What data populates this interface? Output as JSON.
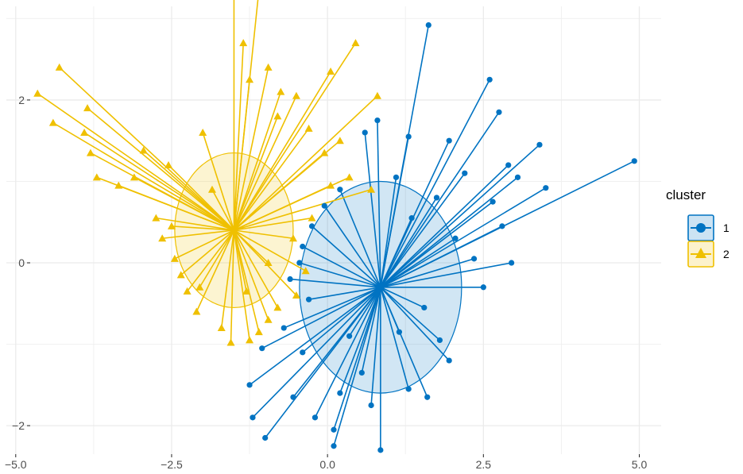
{
  "chart_data": {
    "type": "scatter",
    "subtype": "cluster-star-plot",
    "title": "",
    "xlabel": "",
    "ylabel": "",
    "xlim": [
      -5.15,
      5.35
    ],
    "ylim": [
      -2.35,
      3.15
    ],
    "x_ticks": [
      -5.0,
      -2.5,
      0.0,
      2.5,
      5.0
    ],
    "x_tick_labels": [
      "-5.0",
      "-2.5",
      "0.0",
      "2.5",
      "5.0"
    ],
    "y_ticks": [
      -2,
      0,
      2
    ],
    "y_tick_labels": [
      "-2",
      "0",
      "2"
    ],
    "grid": true,
    "legend": {
      "title": "cluster",
      "position": "right",
      "entries": [
        {
          "label": "1",
          "color": "#0073C2",
          "shape": "circle"
        },
        {
          "label": "2",
          "color": "#EFC000",
          "shape": "triangle"
        }
      ]
    },
    "series": [
      {
        "name": "1",
        "color": "#0073C2",
        "shape": "circle",
        "center": [
          0.85,
          -0.3
        ],
        "ellipse_radius": 1.3,
        "points": [
          [
            1.62,
            2.92
          ],
          [
            2.6,
            2.25
          ],
          [
            4.92,
            1.25
          ],
          [
            3.4,
            1.45
          ],
          [
            2.75,
            1.85
          ],
          [
            2.9,
            1.2
          ],
          [
            3.5,
            0.92
          ],
          [
            2.8,
            0.45
          ],
          [
            2.95,
            0.0
          ],
          [
            2.5,
            -0.3
          ],
          [
            1.95,
            -1.2
          ],
          [
            1.8,
            -0.95
          ],
          [
            2.05,
            0.3
          ],
          [
            0.6,
            1.6
          ],
          [
            0.8,
            1.75
          ],
          [
            1.3,
            1.55
          ],
          [
            1.95,
            1.5
          ],
          [
            2.2,
            1.1
          ],
          [
            1.75,
            0.8
          ],
          [
            1.1,
            1.05
          ],
          [
            0.2,
            0.9
          ],
          [
            -0.05,
            0.7
          ],
          [
            -0.25,
            0.45
          ],
          [
            -0.4,
            0.2
          ],
          [
            -0.45,
            0.0
          ],
          [
            -0.6,
            -0.2
          ],
          [
            -0.3,
            -0.45
          ],
          [
            -1.05,
            -1.05
          ],
          [
            -1.25,
            -1.5
          ],
          [
            -1.2,
            -1.9
          ],
          [
            -1.0,
            -2.15
          ],
          [
            -0.55,
            -1.65
          ],
          [
            -0.2,
            -1.9
          ],
          [
            0.1,
            -2.05
          ],
          [
            0.1,
            -2.25
          ],
          [
            0.85,
            -2.3
          ],
          [
            0.7,
            -1.75
          ],
          [
            1.3,
            -1.55
          ],
          [
            1.6,
            -1.65
          ],
          [
            0.55,
            -1.35
          ],
          [
            0.2,
            -1.6
          ],
          [
            -0.4,
            -1.1
          ],
          [
            -0.7,
            -0.8
          ],
          [
            0.35,
            -0.9
          ],
          [
            1.15,
            -0.85
          ],
          [
            1.55,
            -0.55
          ],
          [
            2.35,
            0.05
          ],
          [
            2.65,
            0.75
          ],
          [
            3.05,
            1.05
          ],
          [
            1.35,
            0.55
          ]
        ]
      },
      {
        "name": "2",
        "color": "#EFC000",
        "shape": "triangle",
        "center": [
          -1.5,
          0.4
        ],
        "ellipse_radius": 0.95,
        "points": [
          [
            -4.65,
            2.08
          ],
          [
            -4.3,
            2.4
          ],
          [
            -4.4,
            1.72
          ],
          [
            -3.9,
            1.6
          ],
          [
            -3.85,
            1.9
          ],
          [
            -3.8,
            1.35
          ],
          [
            -3.7,
            1.05
          ],
          [
            -3.1,
            1.05
          ],
          [
            -3.35,
            0.95
          ],
          [
            -2.95,
            1.38
          ],
          [
            -2.75,
            0.55
          ],
          [
            -2.5,
            0.45
          ],
          [
            -2.65,
            0.3
          ],
          [
            -2.45,
            0.05
          ],
          [
            -2.35,
            -0.15
          ],
          [
            -2.25,
            -0.35
          ],
          [
            -2.1,
            -0.6
          ],
          [
            -1.7,
            -0.8
          ],
          [
            -1.55,
            -0.98
          ],
          [
            -1.25,
            -0.95
          ],
          [
            -1.1,
            -0.85
          ],
          [
            -0.95,
            -0.7
          ],
          [
            -0.8,
            -0.55
          ],
          [
            -0.5,
            -0.4
          ],
          [
            -0.35,
            -0.1
          ],
          [
            -0.55,
            0.3
          ],
          [
            -0.25,
            0.55
          ],
          [
            0.05,
            0.95
          ],
          [
            0.35,
            1.05
          ],
          [
            0.7,
            0.9
          ],
          [
            -1.5,
            3.5
          ],
          [
            -1.1,
            3.35
          ],
          [
            -1.35,
            2.7
          ],
          [
            -0.95,
            2.4
          ],
          [
            -0.75,
            2.1
          ],
          [
            -0.5,
            2.05
          ],
          [
            0.05,
            2.35
          ],
          [
            0.45,
            2.7
          ],
          [
            0.8,
            2.05
          ],
          [
            0.2,
            1.5
          ],
          [
            -0.3,
            1.65
          ],
          [
            -0.05,
            1.35
          ],
          [
            -0.8,
            1.8
          ],
          [
            -1.25,
            2.25
          ],
          [
            -2.0,
            1.6
          ],
          [
            -2.55,
            1.2
          ],
          [
            -1.85,
            0.9
          ],
          [
            -2.05,
            -0.3
          ],
          [
            -1.3,
            -0.35
          ],
          [
            -0.95,
            0.0
          ]
        ]
      }
    ]
  }
}
